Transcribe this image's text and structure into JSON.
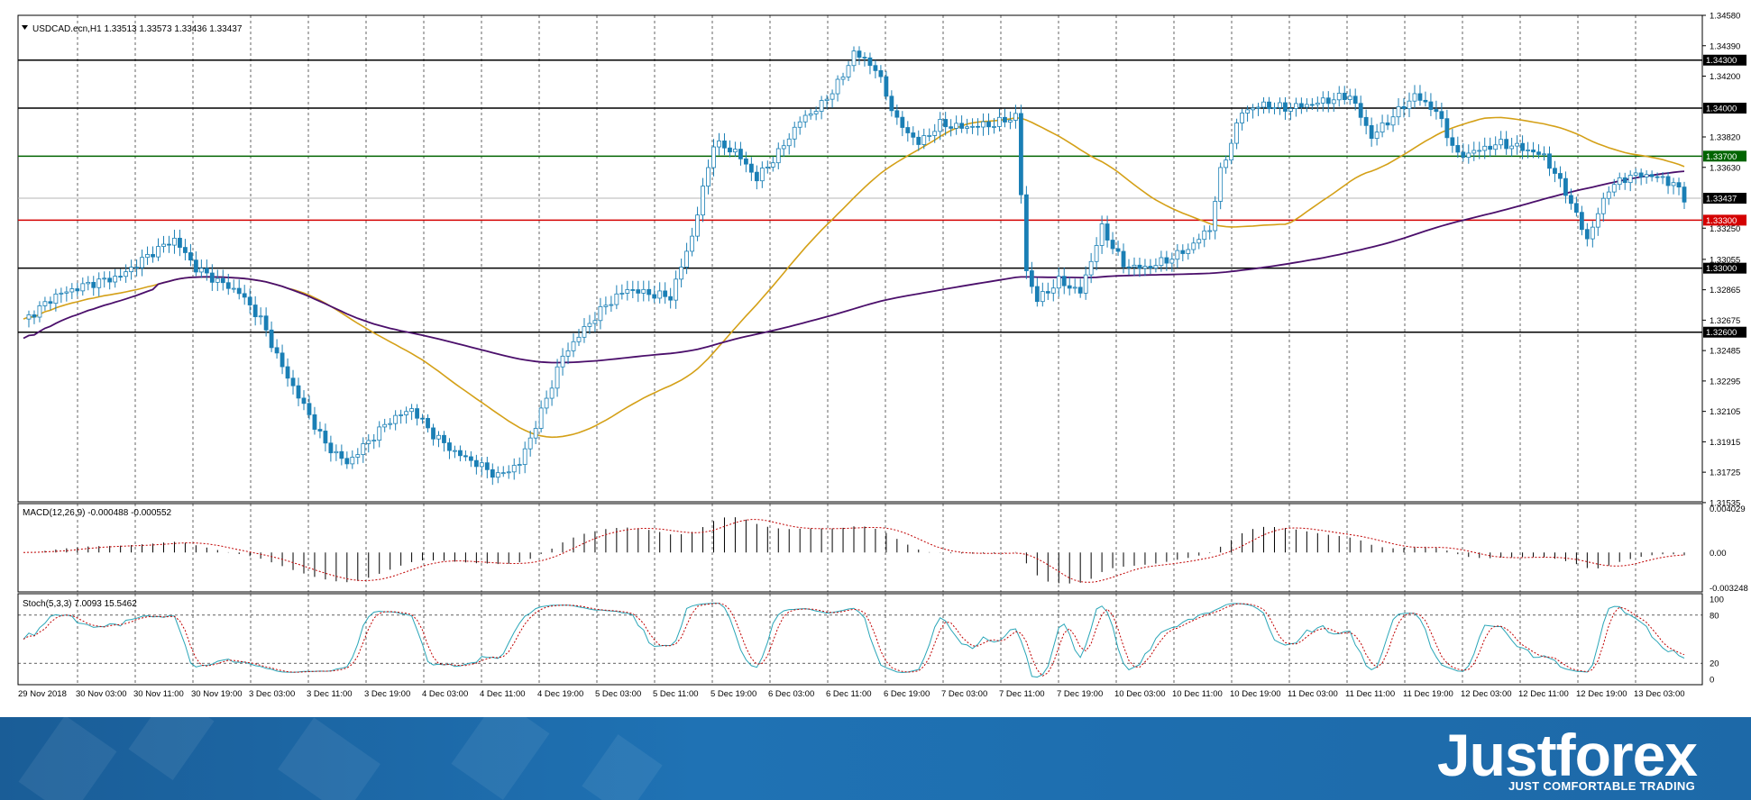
{
  "chart_data": {
    "type": "candlestick",
    "title": "USDCAD.ecn,H1  1.33513 1.33573 1.33436 1.33437",
    "symbol": "USDCAD.ecn,H1",
    "ohlc_header": "1.33513 1.33573 1.33436 1.33437",
    "ylim": [
      1.3154,
      1.3458
    ],
    "y_ticks": [
      "1.34580",
      "1.34390",
      "1.34200",
      "1.33820",
      "1.33630",
      "1.33250",
      "1.33055",
      "1.32865",
      "1.32675",
      "1.32485",
      "1.32295",
      "1.32105",
      "1.31915",
      "1.31725",
      "1.31535"
    ],
    "x_ticks": [
      "29 Nov 2018",
      "30 Nov 03:00",
      "30 Nov 11:00",
      "30 Nov 19:00",
      "3 Dec 03:00",
      "3 Dec 11:00",
      "3 Dec 19:00",
      "4 Dec 03:00",
      "4 Dec 11:00",
      "4 Dec 19:00",
      "5 Dec 03:00",
      "5 Dec 11:00",
      "5 Dec 19:00",
      "6 Dec 03:00",
      "6 Dec 11:00",
      "6 Dec 19:00",
      "7 Dec 03:00",
      "7 Dec 11:00",
      "7 Dec 19:00",
      "10 Dec 03:00",
      "10 Dec 11:00",
      "10 Dec 19:00",
      "11 Dec 03:00",
      "11 Dec 11:00",
      "11 Dec 19:00",
      "12 Dec 03:00",
      "12 Dec 11:00",
      "12 Dec 19:00",
      "13 Dec 03:00"
    ],
    "levels": [
      {
        "label": "1.34300",
        "value": 1.343,
        "color": "#000000"
      },
      {
        "label": "1.34000",
        "value": 1.34,
        "color": "#000000"
      },
      {
        "label": "1.33700",
        "value": 1.337,
        "color": "#006400"
      },
      {
        "label": "1.33437",
        "value": 1.33437,
        "color": "#000000"
      },
      {
        "label": "1.33300",
        "value": 1.333,
        "color": "#d40000"
      },
      {
        "label": "1.33000",
        "value": 1.33,
        "color": "#000000"
      },
      {
        "label": "1.32600",
        "value": 1.326,
        "color": "#000000"
      }
    ],
    "bid_line": 1.33437,
    "candle_color": "#1a7fb5",
    "ma_fast_color": "#d4a017",
    "ma_slow_color": "#4b0f6b",
    "close_path": [
      [
        0,
        1.3267
      ],
      [
        6,
        1.3283
      ],
      [
        12,
        1.329
      ],
      [
        18,
        1.3295
      ],
      [
        24,
        1.331
      ],
      [
        28,
        1.3318
      ],
      [
        32,
        1.33
      ],
      [
        36,
        1.3292
      ],
      [
        40,
        1.3285
      ],
      [
        44,
        1.3268
      ],
      [
        48,
        1.3238
      ],
      [
        52,
        1.3214
      ],
      [
        56,
        1.319
      ],
      [
        60,
        1.3178
      ],
      [
        64,
        1.3192
      ],
      [
        68,
        1.3205
      ],
      [
        72,
        1.3212
      ],
      [
        76,
        1.3196
      ],
      [
        80,
        1.3185
      ],
      [
        84,
        1.3178
      ],
      [
        88,
        1.317
      ],
      [
        92,
        1.3178
      ],
      [
        96,
        1.321
      ],
      [
        100,
        1.3245
      ],
      [
        104,
        1.3262
      ],
      [
        108,
        1.3277
      ],
      [
        112,
        1.3287
      ],
      [
        116,
        1.3284
      ],
      [
        120,
        1.3282
      ],
      [
        124,
        1.332
      ],
      [
        128,
        1.3378
      ],
      [
        132,
        1.3373
      ],
      [
        136,
        1.3356
      ],
      [
        140,
        1.3372
      ],
      [
        144,
        1.3392
      ],
      [
        148,
        1.3402
      ],
      [
        152,
        1.342
      ],
      [
        154,
        1.3435
      ],
      [
        158,
        1.3425
      ],
      [
        162,
        1.3392
      ],
      [
        166,
        1.3378
      ],
      [
        170,
        1.339
      ],
      [
        174,
        1.3388
      ],
      [
        180,
        1.339
      ],
      [
        184,
        1.3395
      ],
      [
        186,
        1.3298
      ],
      [
        188,
        1.328
      ],
      [
        192,
        1.3292
      ],
      [
        196,
        1.3285
      ],
      [
        200,
        1.3325
      ],
      [
        204,
        1.3302
      ],
      [
        208,
        1.33
      ],
      [
        212,
        1.3305
      ],
      [
        216,
        1.3312
      ],
      [
        220,
        1.3325
      ],
      [
        222,
        1.336
      ],
      [
        226,
        1.3398
      ],
      [
        230,
        1.3402
      ],
      [
        234,
        1.34
      ],
      [
        238,
        1.3402
      ],
      [
        242,
        1.3405
      ],
      [
        246,
        1.3408
      ],
      [
        250,
        1.3382
      ],
      [
        254,
        1.3395
      ],
      [
        258,
        1.3408
      ],
      [
        262,
        1.3398
      ],
      [
        266,
        1.337
      ],
      [
        270,
        1.3374
      ],
      [
        274,
        1.3378
      ],
      [
        278,
        1.3375
      ],
      [
        282,
        1.337
      ],
      [
        286,
        1.3348
      ],
      [
        290,
        1.3318
      ],
      [
        294,
        1.335
      ],
      [
        298,
        1.3358
      ],
      [
        302,
        1.3358
      ],
      [
        306,
        1.3353
      ],
      [
        308,
        1.33437
      ]
    ],
    "indicators": [
      {
        "name": "MACD",
        "label": "MACD(12,26,9) -0.000488 -0.000552",
        "ylim": [
          -0.003248,
          0.004029
        ],
        "y_ticks": [
          "0.004029",
          "0.00",
          "-0.003248"
        ]
      },
      {
        "name": "Stoch",
        "label": "Stoch(5,3,3) 7.0093 15.5462",
        "ylim": [
          0,
          100
        ],
        "y_ticks": [
          "100",
          "80",
          "20",
          "0"
        ]
      }
    ]
  },
  "brand": {
    "name": "Justforex",
    "tagline": "JUST COMFORTABLE TRADING"
  }
}
